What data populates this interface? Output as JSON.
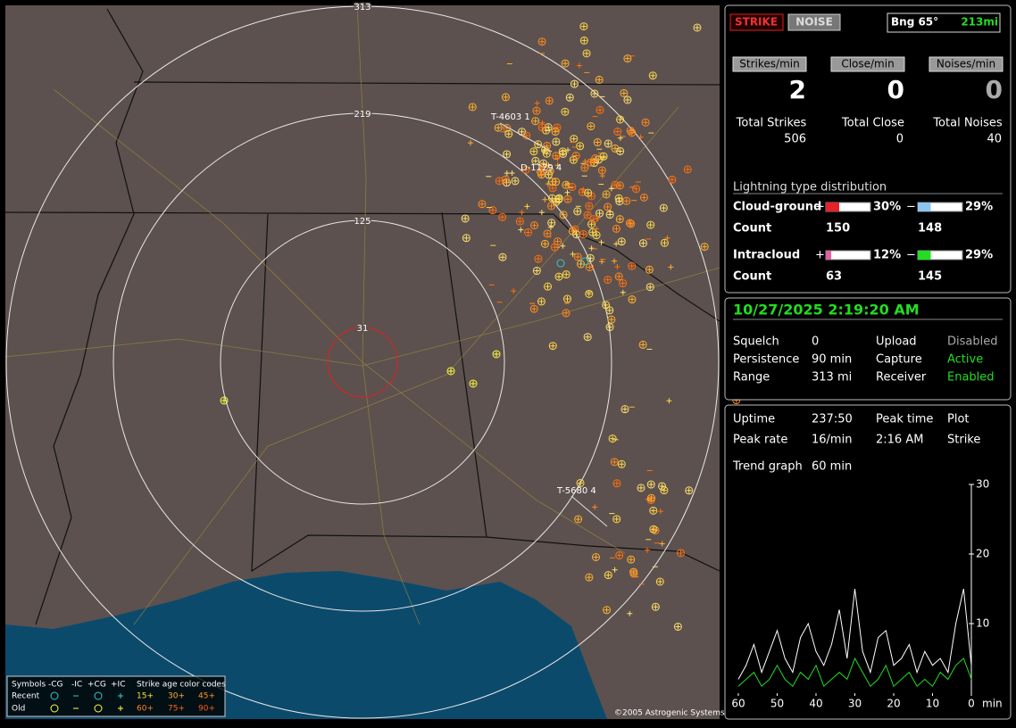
{
  "map": {
    "range_labels": [
      "313",
      "219",
      "125",
      "31"
    ],
    "strike_labels": [
      "T-4603 1",
      "D-1129 4",
      "T-5680 4"
    ],
    "copyright": "©2005 Astrogenic Systems",
    "legend": {
      "symbols": "Symbols",
      "columns": [
        "-CG",
        "-IC",
        "+CG",
        "+IC"
      ],
      "age_title": "Strike age color codes",
      "rows": [
        "Recent",
        "Old"
      ],
      "recent_ages": [
        "15+",
        "30+",
        "45+"
      ],
      "old_ages": [
        "60+",
        "75+",
        "90+"
      ]
    }
  },
  "status": {
    "modes": [
      "STRIKE",
      "NOISE"
    ],
    "bearing": "Bng 65°",
    "distance": "213mi"
  },
  "rates": [
    {
      "label": "Strikes/min",
      "value": 2
    },
    {
      "label": "Close/min",
      "value": 0
    },
    {
      "label": "Noises/min",
      "value": 0
    }
  ],
  "totals": [
    {
      "label": "Total Strikes",
      "value": 506
    },
    {
      "label": "Total Close",
      "value": 0
    },
    {
      "label": "Total Noises",
      "value": 40
    }
  ],
  "distribution": {
    "title": "Lightning type distribution",
    "count_label": "Count",
    "plus_sign": "+",
    "minus_sign": "−",
    "rows": [
      {
        "name": "Cloud-ground",
        "plus_pct": {
          "value": 30,
          "label": "30%"
        },
        "minus_pct": {
          "value": 29,
          "label": "29%"
        },
        "plus_count": 150,
        "minus_count": 148,
        "plus_color": "#e8202a",
        "minus_color": "#8cc4f0"
      },
      {
        "name": "Intracloud",
        "plus_pct": {
          "value": 12,
          "label": "12%"
        },
        "minus_pct": {
          "value": 29,
          "label": "29%"
        },
        "plus_count": 63,
        "minus_count": 145,
        "plus_color": "#e060a0",
        "minus_color": "#22dd22"
      }
    ]
  },
  "clock": "10/27/2025 2:19:20 AM",
  "settings": [
    [
      "Squelch",
      0,
      "Upload",
      "Disabled"
    ],
    [
      "Persistence",
      "90 min",
      "Capture",
      "Active"
    ],
    [
      "Range",
      "313 mi",
      "Receiver",
      "Enabled"
    ]
  ],
  "stats": [
    [
      "Uptime",
      "237:50",
      "Peak time",
      "Plot"
    ],
    [
      "Peak rate",
      "16/min",
      "2:16 AM",
      "Strike"
    ],
    [
      "Trend graph",
      "60 min"
    ]
  ],
  "trend": {
    "type": "line",
    "x_label": "min",
    "x": [
      60,
      58,
      56,
      54,
      52,
      50,
      48,
      46,
      44,
      42,
      40,
      38,
      36,
      34,
      32,
      30,
      28,
      26,
      24,
      22,
      20,
      18,
      16,
      14,
      12,
      10,
      8,
      6,
      4,
      2,
      0
    ],
    "series": [
      {
        "color": "#ffffff",
        "values": [
          2,
          4,
          7,
          3,
          6,
          9,
          5,
          3,
          8,
          10,
          6,
          4,
          7,
          12,
          5,
          15,
          6,
          3,
          8,
          9,
          4,
          5,
          7,
          3,
          6,
          4,
          5,
          3,
          10,
          15,
          4
        ]
      },
      {
        "color": "#22dd22",
        "values": [
          1,
          2,
          3,
          1,
          2,
          4,
          2,
          1,
          3,
          2,
          4,
          1,
          2,
          3,
          2,
          5,
          3,
          1,
          2,
          4,
          1,
          2,
          3,
          1,
          2,
          1,
          3,
          2,
          4,
          5,
          2
        ]
      }
    ],
    "xlim": [
      60,
      0
    ],
    "xticks": [
      60,
      50,
      40,
      30,
      20,
      10,
      0
    ],
    "ylim": [
      0,
      30
    ],
    "yticks": [
      10,
      20,
      30
    ]
  }
}
